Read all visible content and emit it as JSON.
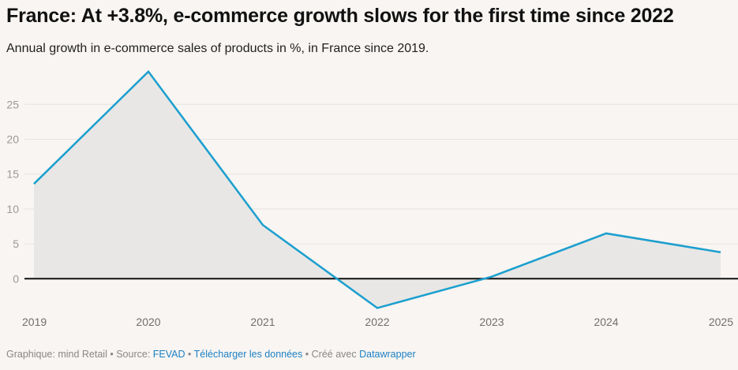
{
  "title": "France: At +3.8%, e-commerce growth slows for the first time since 2022",
  "subtitle": "Annual growth in e-commerce sales of products in %, in France since 2019.",
  "footer": {
    "graphic_label": "Graphique: mind Retail",
    "source_label": "Source:",
    "source_link": "FEVAD",
    "download_link": "Télécharger les données",
    "created_label": "Créé avec",
    "created_link": "Datawrapper",
    "separator": "•"
  },
  "chart_data": {
    "type": "area",
    "title": "France: At +3.8%, e-commerce growth slows for the first time since 2022",
    "subtitle": "Annual growth in e-commerce sales of products in %, in France since 2019.",
    "xlabel": "",
    "ylabel": "",
    "categories": [
      "2019",
      "2020",
      "2021",
      "2022",
      "2023",
      "2024",
      "2025"
    ],
    "values": [
      13.6,
      29.7,
      7.7,
      -4.2,
      0.3,
      6.5,
      3.8
    ],
    "yticks": [
      0,
      5,
      10,
      15,
      20,
      25
    ],
    "ylim": [
      -5,
      30
    ],
    "grid": true,
    "legend": "none",
    "colors": {
      "line": "#1b9fcf",
      "area": "#e8e7e5",
      "zero_line": "#111111",
      "grid": "#e6e3e0"
    }
  }
}
